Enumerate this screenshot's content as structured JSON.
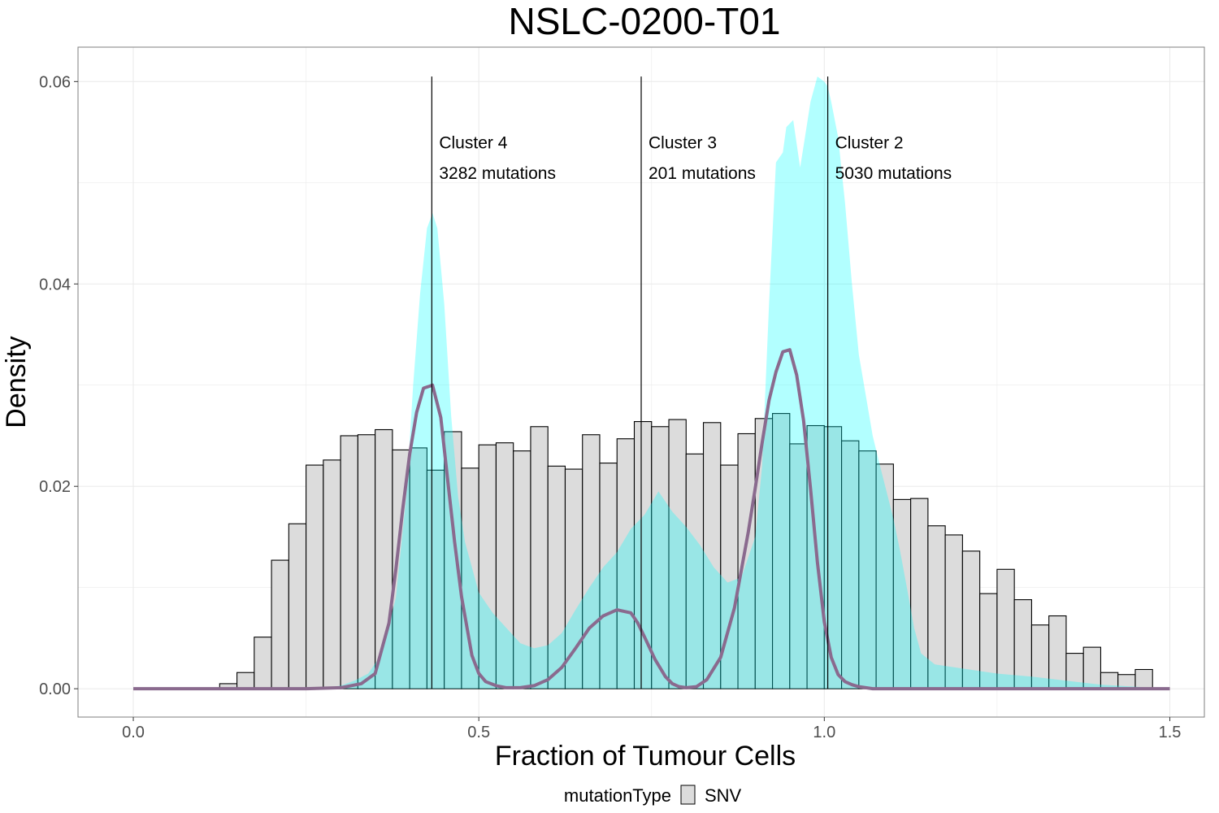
{
  "chart_data": {
    "type": "bar",
    "title": "NSLC-0200-T01",
    "xlabel": "Fraction of Tumour Cells",
    "ylabel": "Density",
    "xlim": [
      -0.08,
      1.55
    ],
    "ylim": [
      -0.0028,
      0.0634
    ],
    "x_ticks": [
      0.0,
      0.5,
      1.0,
      1.5
    ],
    "x_tick_labels": [
      "0.0",
      "0.5",
      "1.0",
      "1.5"
    ],
    "y_ticks": [
      0.0,
      0.02,
      0.04,
      0.06
    ],
    "y_tick_labels": [
      "0.00",
      "0.02",
      "0.04",
      "0.06"
    ],
    "grid": true,
    "legend": {
      "title": "mutationType",
      "entries": [
        "SNV"
      ],
      "position": "bottom"
    },
    "colors": {
      "histogram_fill": "#dcdcdc",
      "histogram_stroke": "#000000",
      "density_fill": "#00ffff",
      "fit_line": "#8a6a8e",
      "cluster_line": "#000000",
      "grid": "#ebebeb",
      "panel_border": "#7f7f7f"
    },
    "histogram": {
      "bin_width": 0.025,
      "bin_starts": [
        0.125,
        0.15,
        0.175,
        0.2,
        0.225,
        0.25,
        0.275,
        0.3,
        0.325,
        0.35,
        0.375,
        0.4,
        0.425,
        0.45,
        0.475,
        0.5,
        0.525,
        0.55,
        0.575,
        0.6,
        0.625,
        0.65,
        0.675,
        0.7,
        0.725,
        0.75,
        0.775,
        0.8,
        0.825,
        0.85,
        0.875,
        0.9,
        0.925,
        0.95,
        0.975,
        1.0,
        1.025,
        1.05,
        1.075,
        1.1,
        1.125,
        1.15,
        1.175,
        1.2,
        1.225,
        1.25,
        1.275,
        1.3,
        1.325,
        1.35,
        1.375,
        1.4,
        1.425,
        1.45
      ],
      "values": [
        0.0005,
        0.0016,
        0.0051,
        0.0127,
        0.0163,
        0.0221,
        0.0226,
        0.025,
        0.0251,
        0.0256,
        0.0236,
        0.0238,
        0.0216,
        0.0254,
        0.0218,
        0.0241,
        0.0243,
        0.0235,
        0.0259,
        0.022,
        0.0217,
        0.0251,
        0.0223,
        0.0247,
        0.0264,
        0.0259,
        0.0266,
        0.0232,
        0.0263,
        0.0221,
        0.0252,
        0.0267,
        0.0272,
        0.0242,
        0.026,
        0.0259,
        0.0245,
        0.0235,
        0.0222,
        0.0187,
        0.0188,
        0.0161,
        0.0152,
        0.0136,
        0.0094,
        0.0118,
        0.0088,
        0.0063,
        0.0072,
        0.0035,
        0.0041,
        0.0016,
        0.0014,
        0.0019
      ]
    },
    "density_area": {
      "x": [
        0.25,
        0.28,
        0.3,
        0.32,
        0.34,
        0.36,
        0.38,
        0.395,
        0.405,
        0.415,
        0.425,
        0.433,
        0.44,
        0.45,
        0.46,
        0.47,
        0.48,
        0.49,
        0.5,
        0.52,
        0.54,
        0.56,
        0.58,
        0.6,
        0.62,
        0.64,
        0.66,
        0.68,
        0.7,
        0.72,
        0.74,
        0.76,
        0.78,
        0.8,
        0.82,
        0.84,
        0.86,
        0.88,
        0.9,
        0.91,
        0.92,
        0.93,
        0.94,
        0.945,
        0.955,
        0.965,
        0.972,
        0.98,
        0.99,
        1.0,
        1.005,
        1.01,
        1.02,
        1.03,
        1.04,
        1.05,
        1.06,
        1.07,
        1.08,
        1.09,
        1.1,
        1.11,
        1.12,
        1.13,
        1.14,
        1.16,
        1.18,
        1.2,
        1.25,
        1.3,
        1.35,
        1.4,
        1.45,
        1.49
      ],
      "y": [
        0.0,
        0.0001,
        0.0003,
        0.0008,
        0.0015,
        0.0035,
        0.009,
        0.019,
        0.03,
        0.039,
        0.0455,
        0.047,
        0.0455,
        0.038,
        0.027,
        0.019,
        0.0145,
        0.012,
        0.0095,
        0.0075,
        0.006,
        0.0045,
        0.004,
        0.0043,
        0.0055,
        0.0078,
        0.01,
        0.012,
        0.0135,
        0.0158,
        0.0172,
        0.0195,
        0.0175,
        0.016,
        0.0142,
        0.012,
        0.0105,
        0.011,
        0.015,
        0.022,
        0.038,
        0.052,
        0.053,
        0.0555,
        0.0562,
        0.0515,
        0.0545,
        0.058,
        0.0605,
        0.06,
        0.0595,
        0.058,
        0.0545,
        0.048,
        0.04,
        0.033,
        0.029,
        0.025,
        0.0222,
        0.0195,
        0.0168,
        0.0135,
        0.0098,
        0.006,
        0.0035,
        0.0024,
        0.0022,
        0.002,
        0.0015,
        0.0012,
        0.0008,
        0.0004,
        0.0002,
        0.0
      ]
    },
    "fit_line": {
      "x": [
        0.0,
        0.1,
        0.2,
        0.25,
        0.3,
        0.33,
        0.35,
        0.37,
        0.38,
        0.39,
        0.4,
        0.41,
        0.42,
        0.433,
        0.445,
        0.455,
        0.465,
        0.475,
        0.49,
        0.5,
        0.51,
        0.525,
        0.54,
        0.56,
        0.58,
        0.6,
        0.62,
        0.64,
        0.66,
        0.68,
        0.7,
        0.72,
        0.73,
        0.742,
        0.755,
        0.77,
        0.78,
        0.79,
        0.8,
        0.815,
        0.83,
        0.85,
        0.87,
        0.89,
        0.9,
        0.91,
        0.92,
        0.93,
        0.94,
        0.95,
        0.96,
        0.97,
        0.98,
        0.99,
        1.0,
        1.01,
        1.02,
        1.03,
        1.04,
        1.05,
        1.06,
        1.07,
        1.08,
        1.09,
        1.1,
        1.12,
        1.15,
        1.2,
        1.3,
        1.4,
        1.5
      ],
      "y": [
        0.0,
        0.0,
        0.0,
        0.0,
        0.0001,
        0.0005,
        0.0015,
        0.0065,
        0.0118,
        0.0178,
        0.0232,
        0.0273,
        0.0297,
        0.03,
        0.0268,
        0.0206,
        0.0145,
        0.0091,
        0.0033,
        0.0015,
        0.0007,
        0.0003,
        0.0001,
        0.0001,
        0.0003,
        0.0009,
        0.0021,
        0.004,
        0.006,
        0.0072,
        0.0078,
        0.0075,
        0.0065,
        0.0048,
        0.0029,
        0.0012,
        0.0005,
        0.0002,
        0.0001,
        0.0002,
        0.0009,
        0.0031,
        0.008,
        0.0155,
        0.0198,
        0.0243,
        0.0285,
        0.0313,
        0.0333,
        0.0335,
        0.031,
        0.0265,
        0.0198,
        0.0125,
        0.0066,
        0.0031,
        0.0014,
        0.0007,
        0.0004,
        0.0002,
        0.0001,
        0.0,
        0.0,
        0.0,
        0.0,
        0.0,
        0.0,
        0.0,
        0.0,
        0.0,
        0.0
      ]
    },
    "annotations": [
      {
        "x": 0.432,
        "y_top": 0.0605,
        "line1": "Cluster 4",
        "line2": "3282 mutations"
      },
      {
        "x": 0.735,
        "y_top": 0.0605,
        "line1": "Cluster 3",
        "line2": "201 mutations"
      },
      {
        "x": 1.005,
        "y_top": 0.0605,
        "line1": "Cluster 2",
        "line2": "5030 mutations"
      }
    ]
  }
}
